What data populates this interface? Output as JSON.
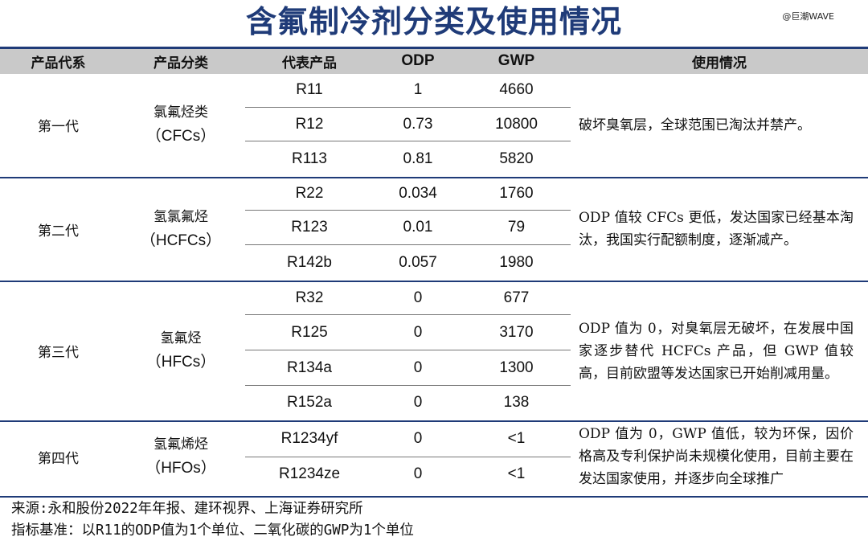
{
  "title": "含氟制冷剂分类及使用情况",
  "watermark": "@巨潮WAVE",
  "headers": [
    "产品代系",
    "产品分类",
    "代表产品",
    "ODP",
    "GWP",
    "使用情况"
  ],
  "groups": [
    {
      "generation": "第一代",
      "category_cn": "氯氟烃类",
      "category_en": "（CFCs）",
      "usage": "破坏臭氧层，全球范围已淘汰并禁产。",
      "rows": [
        {
          "product": "R11",
          "odp": "1",
          "gwp": "4660"
        },
        {
          "product": "R12",
          "odp": "0.73",
          "gwp": "10800"
        },
        {
          "product": "R113",
          "odp": "0.81",
          "gwp": "5820"
        }
      ]
    },
    {
      "generation": "第二代",
      "category_cn": "氢氯氟烃",
      "category_en": "（HCFCs）",
      "usage": "ODP 值较 CFCs 更低，发达国家已经基本淘汰，我国实行配额制度，逐渐减产。",
      "rows": [
        {
          "product": "R22",
          "odp": "0.034",
          "gwp": "1760"
        },
        {
          "product": "R123",
          "odp": "0.01",
          "gwp": "79"
        },
        {
          "product": "R142b",
          "odp": "0.057",
          "gwp": "1980"
        }
      ]
    },
    {
      "generation": "第三代",
      "category_cn": "氢氟烃",
      "category_en": "（HFCs）",
      "usage": "ODP 值为 0，对臭氧层无破坏，在发展中国家逐步替代 HCFCs 产品，但 GWP 值较高，目前欧盟等发达国家已开始削减用量。",
      "rows": [
        {
          "product": "R32",
          "odp": "0",
          "gwp": "677"
        },
        {
          "product": "R125",
          "odp": "0",
          "gwp": "3170"
        },
        {
          "product": "R134a",
          "odp": "0",
          "gwp": "1300"
        },
        {
          "product": "R152a",
          "odp": "0",
          "gwp": "138"
        }
      ]
    },
    {
      "generation": "第四代",
      "category_cn": "氢氟烯烃",
      "category_en": "（HFOs）",
      "usage": "ODP 值为 0，GWP 值低，较为环保，因价格高及专利保护尚未规模化使用，目前主要在发达国家使用，并逐步向全球推广",
      "rows": [
        {
          "product": "R1234yf",
          "odp": "0",
          "gwp": "<1"
        },
        {
          "product": "R1234ze",
          "odp": "0",
          "gwp": "<1"
        }
      ]
    }
  ],
  "footer": {
    "source": "来源:永和股份2022年年报、建环视界、上海证券研究所",
    "note": "指标基准：以R11的ODP值为1个单位、二氧化碳的GWP为1个单位"
  }
}
